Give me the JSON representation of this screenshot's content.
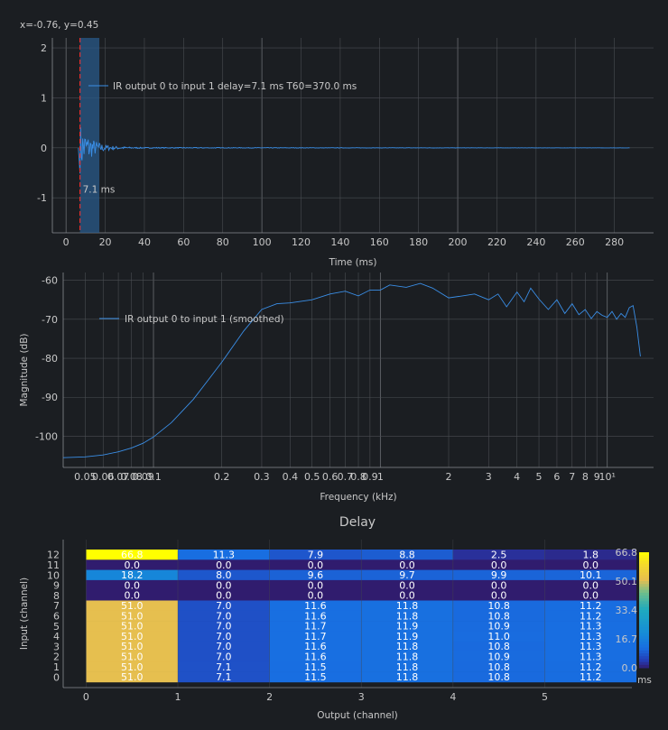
{
  "readout": "x=-0.76, y=0.45",
  "colors": {
    "trace": "#3a8ee6",
    "marker": "#e03030",
    "band": "#2a5a8a",
    "grid": "#4a4d52"
  },
  "chart_data": [
    {
      "type": "line",
      "id": "impulse-response",
      "xlabel": "Time (ms)",
      "ylabel": "",
      "xlim": [
        -7,
        300
      ],
      "ylim": [
        -1.7,
        2.2
      ],
      "xticks": [
        0,
        20,
        40,
        60,
        80,
        100,
        120,
        140,
        160,
        180,
        200,
        220,
        240,
        260,
        280
      ],
      "yticks": [
        -1,
        0,
        1,
        2
      ],
      "series": [
        {
          "name": "IR output 0 to input 1 delay=7.1 ms T60=370.0 ms",
          "envelope_peak": 0.5,
          "start": 7.1,
          "end": 288
        }
      ],
      "markers": {
        "delay_line": 7.1,
        "delay_label": "7.1 ms",
        "band": [
          7.1,
          17
        ]
      },
      "legend": "top-left"
    },
    {
      "type": "line",
      "id": "frequency-response",
      "xlabel": "Frequency (kHz)",
      "ylabel": "Magnitude (dB)",
      "xscale": "log",
      "xlim": [
        0.04,
        16
      ],
      "ylim": [
        -108,
        -58
      ],
      "xticks": [
        {
          "v": 0.05,
          "label": "0.05"
        },
        {
          "v": 0.06,
          "label": "0.06"
        },
        {
          "v": 0.07,
          "label": "0.07"
        },
        {
          "v": 0.08,
          "label": "0.08"
        },
        {
          "v": 0.09,
          "label": "0.09"
        },
        {
          "v": 0.1,
          "label": "0.1"
        },
        {
          "v": 0.2,
          "label": "0.2"
        },
        {
          "v": 0.3,
          "label": "0.3"
        },
        {
          "v": 0.4,
          "label": "0.4"
        },
        {
          "v": 0.5,
          "label": "0.5"
        },
        {
          "v": 0.6,
          "label": "0.6"
        },
        {
          "v": 0.7,
          "label": "0.7"
        },
        {
          "v": 0.8,
          "label": "0.8"
        },
        {
          "v": 0.9,
          "label": "0.9"
        },
        {
          "v": 1,
          "label": "1"
        },
        {
          "v": 2,
          "label": "2"
        },
        {
          "v": 3,
          "label": "3"
        },
        {
          "v": 4,
          "label": "4"
        },
        {
          "v": 5,
          "label": "5"
        },
        {
          "v": 6,
          "label": "6"
        },
        {
          "v": 7,
          "label": "7"
        },
        {
          "v": 8,
          "label": "8"
        },
        {
          "v": 9,
          "label": "9"
        },
        {
          "v": 10,
          "label": "10¹"
        }
      ],
      "yticks": [
        -100,
        -90,
        -80,
        -70,
        -60
      ],
      "series": [
        {
          "name": "IR output 0 to input 1 (smoothed)",
          "x": [
            0.04,
            0.05,
            0.06,
            0.07,
            0.08,
            0.09,
            0.1,
            0.12,
            0.15,
            0.18,
            0.2,
            0.25,
            0.3,
            0.35,
            0.4,
            0.5,
            0.6,
            0.7,
            0.8,
            0.9,
            1.0,
            1.1,
            1.3,
            1.5,
            1.7,
            2.0,
            2.3,
            2.6,
            3.0,
            3.3,
            3.6,
            4.0,
            4.3,
            4.6,
            5.0,
            5.5,
            6.0,
            6.5,
            7.0,
            7.5,
            8.0,
            8.5,
            9.0,
            9.5,
            10,
            10.5,
            11,
            11.5,
            12,
            12.5,
            13,
            13.5,
            14
          ],
          "y": [
            -105.5,
            -105.3,
            -104.8,
            -104.0,
            -103.0,
            -101.8,
            -100.2,
            -96.5,
            -90.5,
            -84.5,
            -81.0,
            -73.0,
            -67.5,
            -66.0,
            -65.8,
            -65.0,
            -63.5,
            -62.8,
            -64.0,
            -62.5,
            -62.5,
            -61.2,
            -61.8,
            -60.8,
            -62.0,
            -64.5,
            -64.0,
            -63.5,
            -65.0,
            -63.5,
            -66.8,
            -63.0,
            -65.5,
            -62.0,
            -64.8,
            -67.5,
            -65.0,
            -68.5,
            -66.0,
            -68.8,
            -67.5,
            -69.8,
            -68.0,
            -69.0,
            -69.5,
            -68.0,
            -70.0,
            -68.5,
            -69.5,
            -67.0,
            -66.5,
            -72.0,
            -79.5
          ]
        }
      ],
      "legend": "top-left"
    },
    {
      "type": "heatmap",
      "id": "delay-matrix",
      "title": "Delay",
      "xlabel": "Output (channel)",
      "ylabel": "Input (channel)",
      "xticks": [
        0,
        1,
        2,
        3,
        4,
        5
      ],
      "yticks": [
        0,
        1,
        2,
        3,
        4,
        5,
        6,
        7,
        8,
        9,
        10,
        11,
        12
      ],
      "colorbar": {
        "min": 0.0,
        "max": 66.8,
        "ticks": [
          "66.8",
          "50.1",
          "33.4",
          "16.7",
          "0.0"
        ],
        "unit": "ms"
      },
      "rows": [
        {
          "input": 12,
          "values": [
            "66.8",
            "11.3",
            "7.9",
            "8.8",
            "2.5",
            "1.8"
          ]
        },
        {
          "input": 11,
          "values": [
            "0.0",
            "0.0",
            "0.0",
            "0.0",
            "0.0",
            "0.0"
          ]
        },
        {
          "input": 10,
          "values": [
            "18.2",
            "8.0",
            "9.6",
            "9.7",
            "9.9",
            "10.1"
          ]
        },
        {
          "input": 9,
          "values": [
            "0.0",
            "0.0",
            "0.0",
            "0.0",
            "0.0",
            "0.0"
          ]
        },
        {
          "input": 8,
          "values": [
            "0.0",
            "0.0",
            "0.0",
            "0.0",
            "0.0",
            "0.0"
          ]
        },
        {
          "input": 7,
          "values": [
            "51.0",
            "7.0",
            "11.6",
            "11.8",
            "10.8",
            "11.2"
          ]
        },
        {
          "input": 6,
          "values": [
            "51.0",
            "7.0",
            "11.6",
            "11.8",
            "10.8",
            "11.2"
          ]
        },
        {
          "input": 5,
          "values": [
            "51.0",
            "7.0",
            "11.7",
            "11.9",
            "10.9",
            "11.3"
          ]
        },
        {
          "input": 4,
          "values": [
            "51.0",
            "7.0",
            "11.7",
            "11.9",
            "11.0",
            "11.3"
          ]
        },
        {
          "input": 3,
          "values": [
            "51.0",
            "7.0",
            "11.6",
            "11.8",
            "10.8",
            "11.3"
          ]
        },
        {
          "input": 2,
          "values": [
            "51.0",
            "7.0",
            "11.6",
            "11.8",
            "10.9",
            "11.3"
          ]
        },
        {
          "input": 1,
          "values": [
            "51.0",
            "7.1",
            "11.5",
            "11.8",
            "10.8",
            "11.2"
          ]
        },
        {
          "input": 0,
          "values": [
            "51.0",
            "7.1",
            "11.5",
            "11.8",
            "10.8",
            "11.2"
          ]
        }
      ]
    }
  ]
}
